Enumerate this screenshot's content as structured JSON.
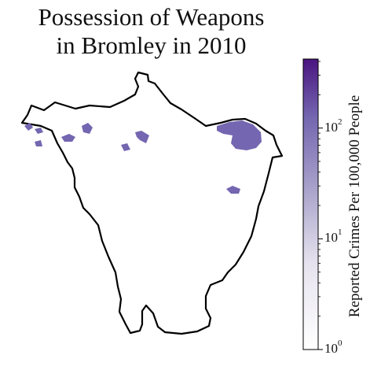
{
  "title": {
    "line1": "Possession of Weapons",
    "line2": "in Bromley in 2010"
  },
  "colorbar": {
    "label": "Reported Crimes Per 100,000 People",
    "scale": "log",
    "min": 1,
    "max": 420,
    "ticks": [
      {
        "value": 1,
        "base": "10",
        "exp": "0"
      },
      {
        "value": 10,
        "base": "10",
        "exp": "1"
      },
      {
        "value": 100,
        "base": "10",
        "exp": "2"
      }
    ],
    "color_low": "#ffffff",
    "color_high": "#4a1580"
  },
  "map": {
    "boundary_color": "#000000",
    "region_color": "#7466b0",
    "highlighted_areas": [
      {
        "name": "north-east-hotspot",
        "level": 90
      },
      {
        "name": "north-west-area",
        "level": 40
      },
      {
        "name": "central-north-area",
        "level": 40
      },
      {
        "name": "east-area",
        "level": 40
      }
    ]
  }
}
